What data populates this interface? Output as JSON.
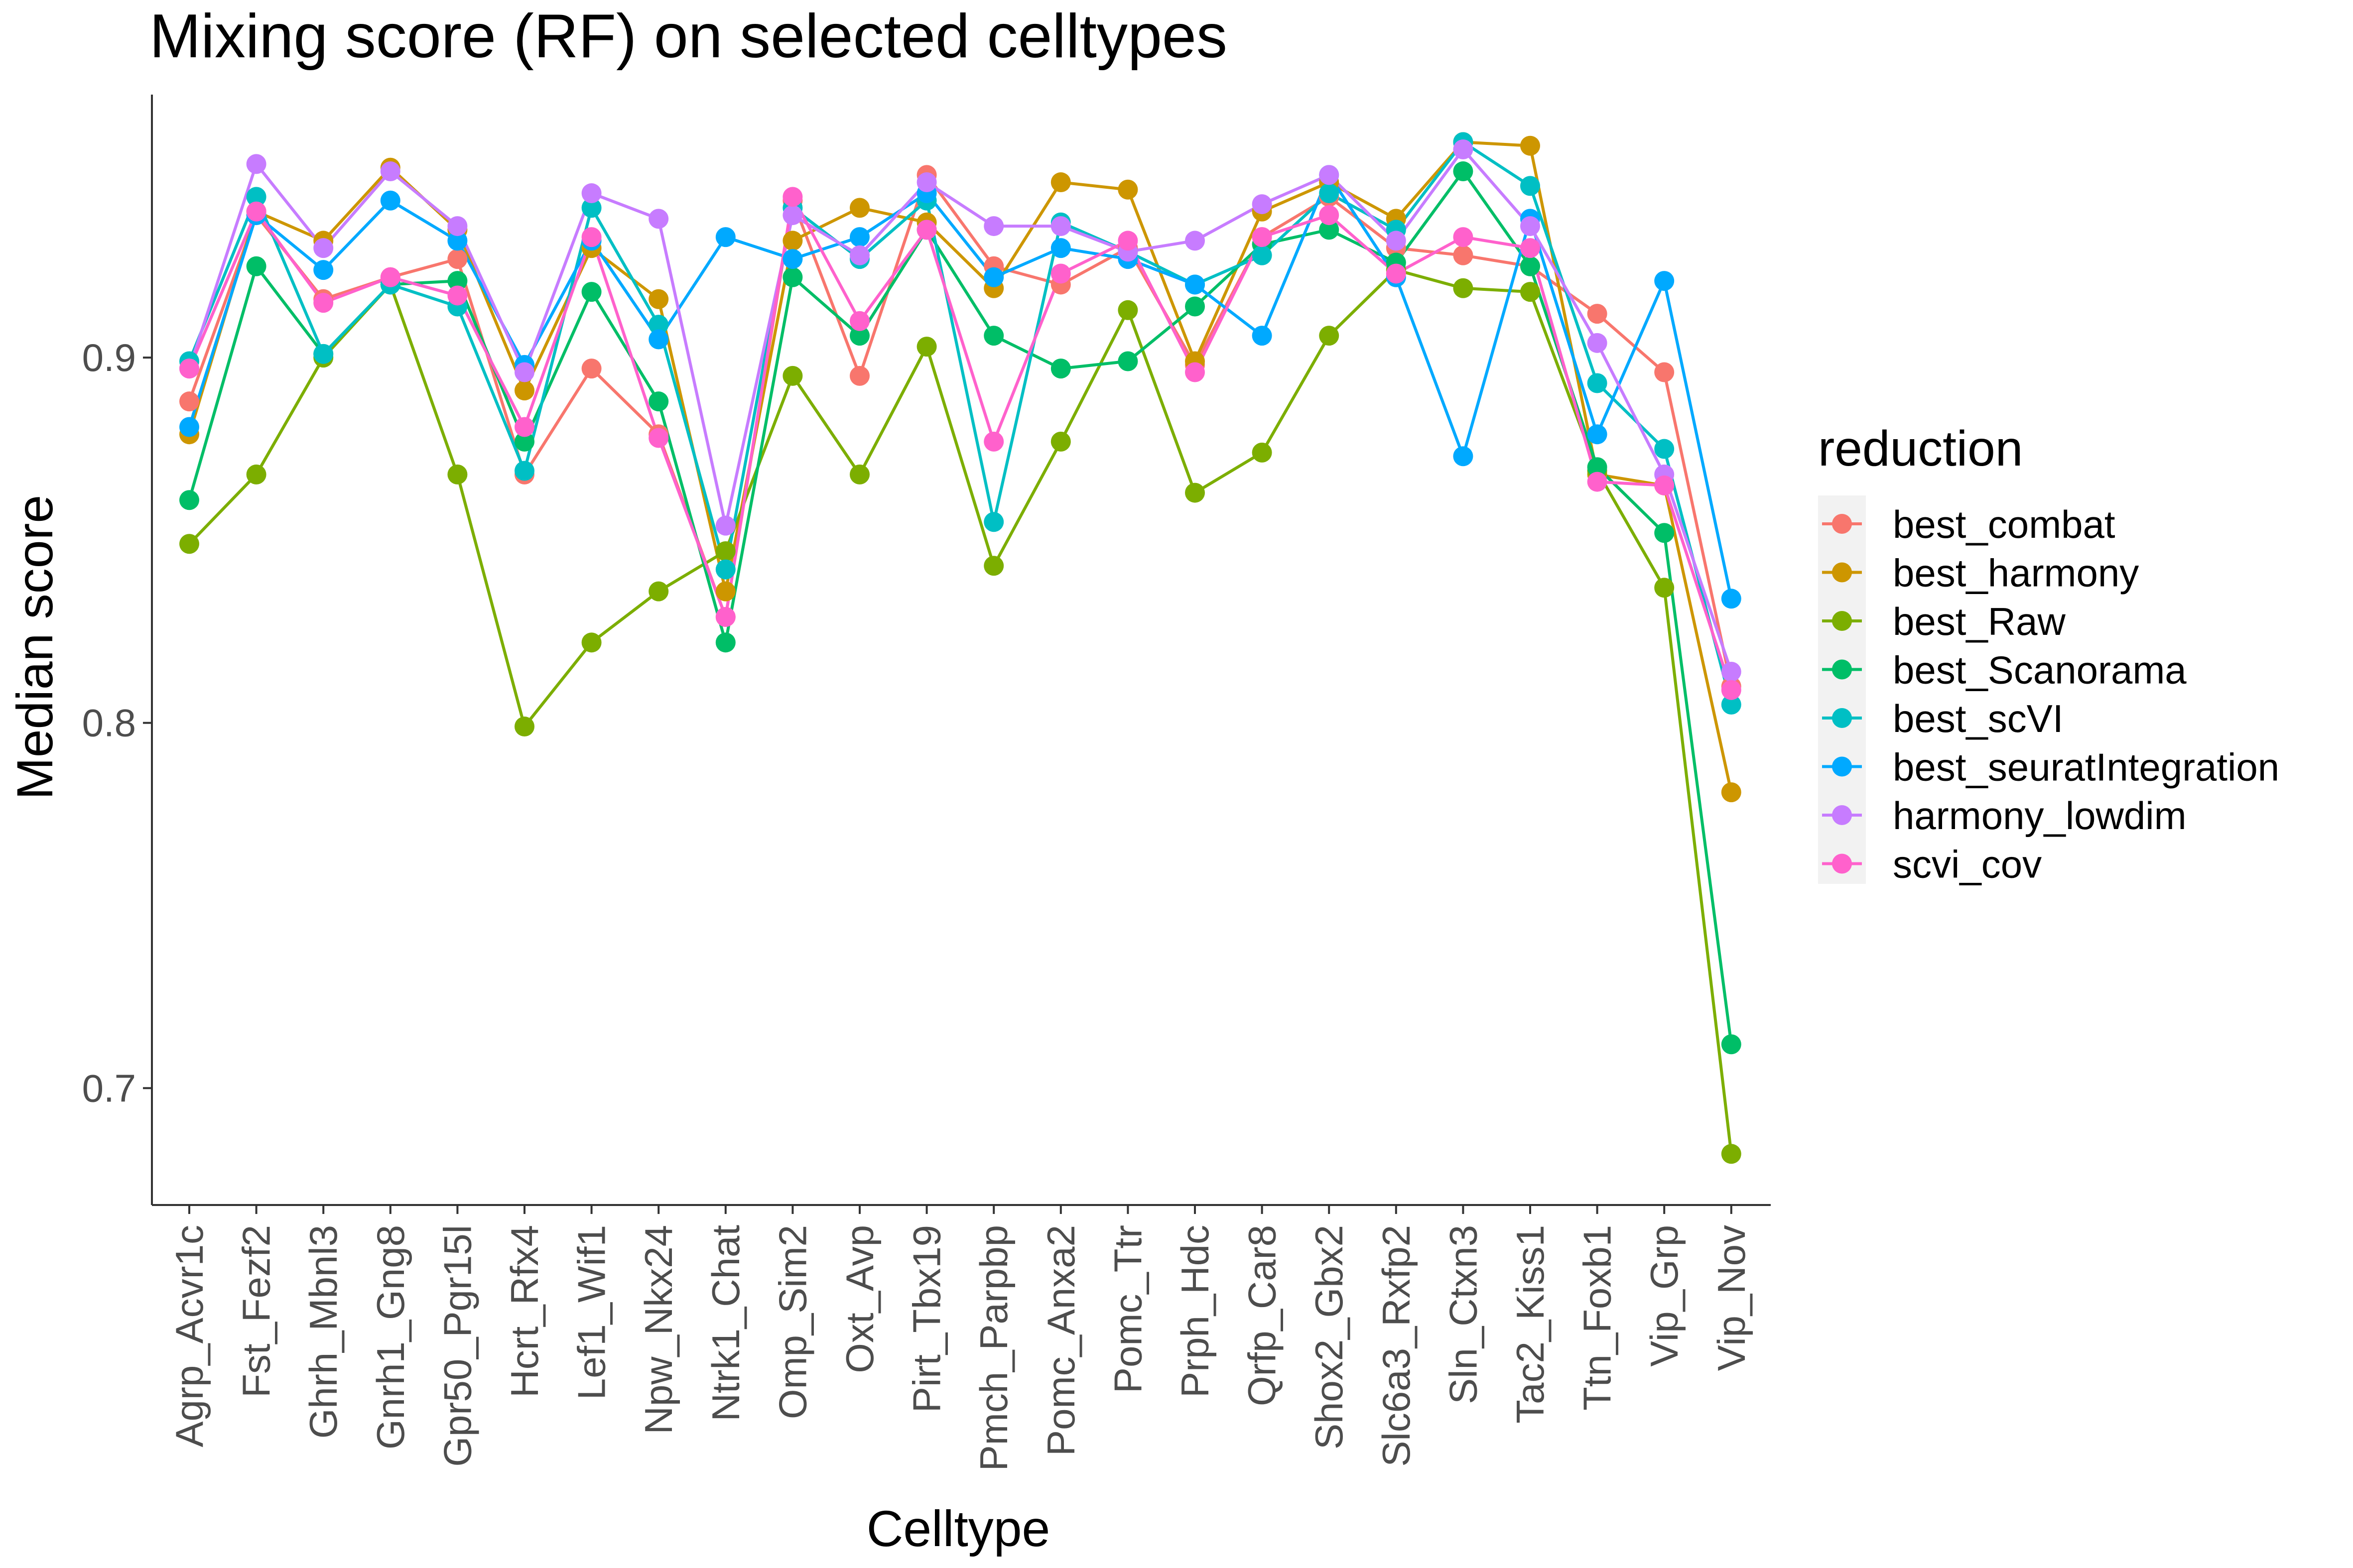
{
  "chart_data": {
    "type": "line",
    "title": "Mixing score (RF) on selected celltypes",
    "xlabel": "Celltype",
    "ylabel": "Median score",
    "ylim": [
      0.668,
      0.972
    ],
    "yticks": [
      0.7,
      0.8,
      0.9
    ],
    "ytick_labels": [
      "0.7",
      "0.8",
      "0.9"
    ],
    "grid": false,
    "legend_title": "reduction",
    "legend_position": "right",
    "categories": [
      "Agrp_Acvr1c",
      "Fst_Fezf2",
      "Ghrh_Mbnl3",
      "Gnrh1_Gng8",
      "Gpr50_Pgr15l",
      "Hcrt_Rfx4",
      "Lef1_Wif1",
      "Npw_Nkx24",
      "Ntrk1_Chat",
      "Omp_Sim2",
      "Oxt_Avp",
      "Pirt_Tbx19",
      "Pmch_Parpbp",
      "Pomc_Anxa2",
      "Pomc_Ttr",
      "Prph_Hdc",
      "Qrfp_Car8",
      "Shox2_Gbx2",
      "Slc6a3_Rxfp2",
      "Sln_Ctxn3",
      "Tac2_Kiss1",
      "Ttn_Foxb1",
      "Vip_Grp",
      "Vip_Nov"
    ],
    "series": [
      {
        "name": "best_combat",
        "color": "#F8766D",
        "values": [
          0.888,
          0.939,
          0.916,
          0.922,
          0.927,
          0.868,
          0.897,
          0.879,
          0.829,
          0.943,
          0.895,
          0.95,
          0.925,
          0.92,
          0.93,
          0.898,
          0.933,
          0.944,
          0.93,
          0.928,
          0.925,
          0.912,
          0.896,
          0.81
        ]
      },
      {
        "name": "best_harmony",
        "color": "#CD9600",
        "values": [
          0.879,
          0.94,
          0.932,
          0.952,
          0.935,
          0.891,
          0.93,
          0.916,
          0.836,
          0.932,
          0.941,
          0.937,
          0.919,
          0.948,
          0.946,
          0.899,
          0.94,
          0.948,
          0.938,
          0.959,
          0.958,
          0.868,
          0.865,
          0.781
        ]
      },
      {
        "name": "best_Raw",
        "color": "#7CAE00",
        "values": [
          0.849,
          0.868,
          0.9,
          0.92,
          0.868,
          0.799,
          0.822,
          0.836,
          0.847,
          0.895,
          0.868,
          0.903,
          0.843,
          0.877,
          0.913,
          0.863,
          0.874,
          0.906,
          0.924,
          0.919,
          0.918,
          0.869,
          0.837,
          0.682
        ]
      },
      {
        "name": "best_Scanorama",
        "color": "#00BE67",
        "values": [
          0.861,
          0.925,
          0.901,
          0.92,
          0.921,
          0.877,
          0.918,
          0.888,
          0.822,
          0.922,
          0.906,
          0.935,
          0.906,
          0.897,
          0.899,
          0.914,
          0.931,
          0.935,
          0.926,
          0.951,
          0.925,
          0.87,
          0.852,
          0.712
        ]
      },
      {
        "name": "best_scVI",
        "color": "#00BFC4",
        "values": [
          0.899,
          0.944,
          0.901,
          0.92,
          0.914,
          0.869,
          0.941,
          0.909,
          0.842,
          0.941,
          0.927,
          0.943,
          0.855,
          0.937,
          0.929,
          0.92,
          0.928,
          0.945,
          0.935,
          0.959,
          0.947,
          0.893,
          0.875,
          0.805
        ]
      },
      {
        "name": "best_seuratIntegration",
        "color": "#00A9FF",
        "values": [
          0.881,
          0.939,
          0.924,
          0.943,
          0.932,
          0.898,
          0.932,
          0.905,
          0.933,
          0.927,
          0.933,
          0.945,
          0.922,
          0.93,
          0.927,
          0.92,
          0.906,
          0.95,
          0.922,
          0.873,
          0.938,
          0.879,
          0.921,
          0.834
        ]
      },
      {
        "name": "harmony_lowdim",
        "color": "#C77CFF",
        "values": [
          0.897,
          0.953,
          0.93,
          0.951,
          0.936,
          0.896,
          0.945,
          0.938,
          0.854,
          0.939,
          0.928,
          0.948,
          0.936,
          0.936,
          0.929,
          0.932,
          0.942,
          0.95,
          0.932,
          0.957,
          0.936,
          0.904,
          0.868,
          0.814
        ]
      },
      {
        "name": "scvi_cov",
        "color": "#FF61CC",
        "values": [
          0.897,
          0.94,
          0.915,
          0.922,
          0.917,
          0.881,
          0.933,
          0.878,
          0.829,
          0.944,
          0.91,
          0.935,
          0.877,
          0.923,
          0.932,
          0.896,
          0.933,
          0.939,
          0.923,
          0.933,
          0.93,
          0.866,
          0.865,
          0.809
        ]
      }
    ]
  }
}
